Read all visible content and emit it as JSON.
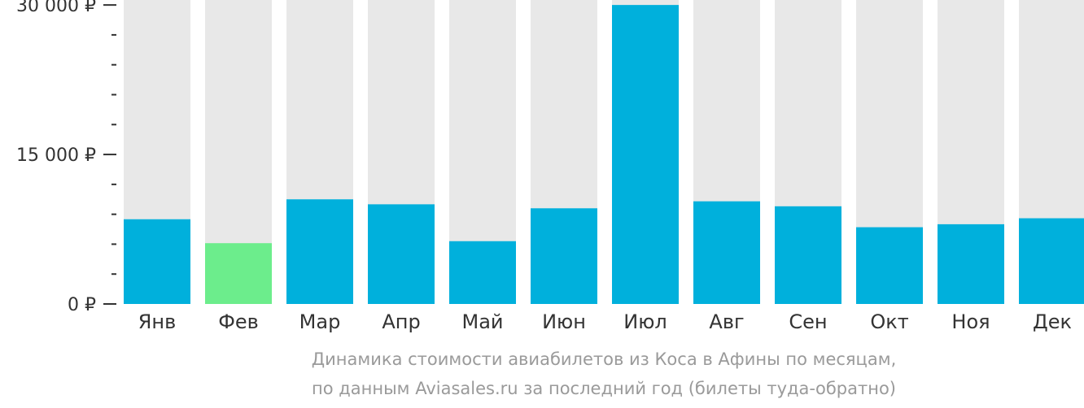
{
  "chart_data": {
    "type": "bar",
    "categories": [
      "Янв",
      "Фев",
      "Мар",
      "Апр",
      "Май",
      "Июн",
      "Июл",
      "Авг",
      "Сен",
      "Окт",
      "Ноя",
      "Дек"
    ],
    "values": [
      8500,
      6100,
      10500,
      10000,
      6300,
      9600,
      30000,
      10300,
      9800,
      7700,
      8000,
      8600
    ],
    "highlight_index": 1,
    "ylim": [
      0,
      30500
    ],
    "yticks": [
      {
        "value": 0,
        "label": "0 ₽"
      },
      {
        "value": 15000,
        "label": "15 000 ₽"
      },
      {
        "value": 30000,
        "label": "30 000 ₽"
      }
    ],
    "minor_tick_step": 3000,
    "colors": {
      "bar": "#00b0dc",
      "highlight": "#6ced8c",
      "track": "#e8e8e8",
      "axis": "#333333"
    }
  },
  "caption": {
    "line1": "Динамика стоимости авиабилетов из Коса в Афины по месяцам,",
    "line2": "по данным Aviasales.ru за последний год (билеты туда-обратно)"
  }
}
